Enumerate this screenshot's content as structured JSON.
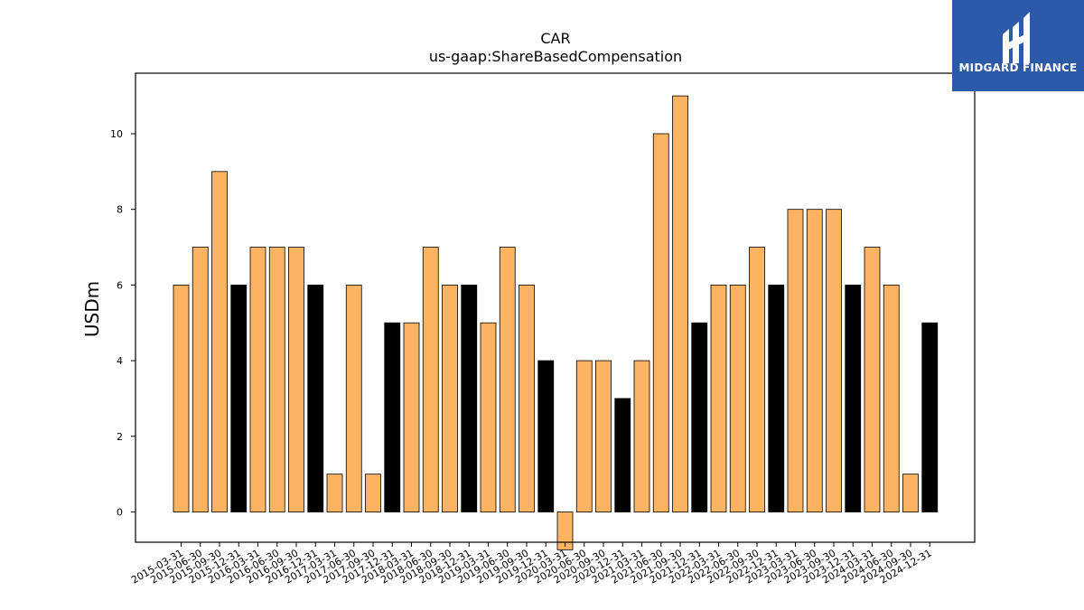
{
  "logo": {
    "text": "MIDGARD FINANCE",
    "background": "#2d5aa8"
  },
  "chart_data": {
    "type": "bar",
    "title": "CAR",
    "subtitle": "us-gaap:ShareBasedCompensation",
    "xlabel": "",
    "ylabel": "USDm",
    "ylim": [
      -0.8,
      11.6
    ],
    "yticks": [
      0,
      2,
      4,
      6,
      8,
      10
    ],
    "grid": false,
    "colors": {
      "quarter": "#fdb462",
      "year_end": "#000000",
      "edge": "#000000"
    },
    "categories": [
      "2015-03-31",
      "2015-06-30",
      "2015-09-30",
      "2015-12-31",
      "2016-03-31",
      "2016-06-30",
      "2016-09-30",
      "2016-12-31",
      "2017-03-31",
      "2017-06-30",
      "2017-09-30",
      "2017-12-31",
      "2018-03-31",
      "2018-06-30",
      "2018-09-30",
      "2018-12-31",
      "2019-03-31",
      "2019-06-30",
      "2019-09-30",
      "2019-12-31",
      "2020-03-31",
      "2020-06-30",
      "2020-09-30",
      "2020-12-31",
      "2021-03-31",
      "2021-06-30",
      "2021-09-30",
      "2021-12-31",
      "2022-03-31",
      "2022-06-30",
      "2022-09-30",
      "2022-12-31",
      "2023-03-31",
      "2023-06-30",
      "2023-09-30",
      "2023-12-31",
      "2024-03-31",
      "2024-06-30",
      "2024-09-30",
      "2024-12-31"
    ],
    "values": [
      6,
      7,
      9,
      6,
      7,
      7,
      7,
      6,
      1,
      6,
      1,
      5,
      5,
      7,
      6,
      6,
      5,
      7,
      6,
      4,
      -1,
      4,
      4,
      3,
      4,
      10,
      11,
      5,
      6,
      6,
      7,
      6,
      8,
      8,
      8,
      6,
      7,
      6,
      1,
      5
    ]
  }
}
